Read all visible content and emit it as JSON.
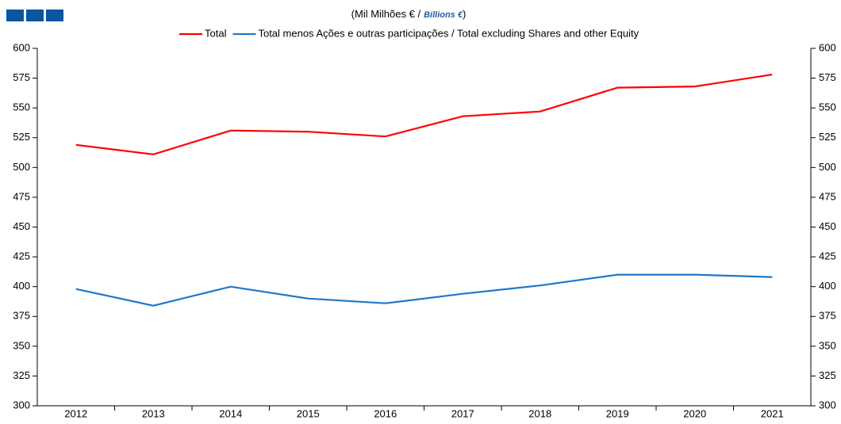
{
  "chart_data": {
    "type": "line",
    "title_parts": [
      "(Mil Milhões € /",
      "Billions €",
      ")"
    ],
    "categories": [
      "2012",
      "2013",
      "2014",
      "2015",
      "2016",
      "2017",
      "2018",
      "2019",
      "2020",
      "2021"
    ],
    "series": [
      {
        "name": "Total",
        "color": "#ff0000",
        "values": [
          519,
          511,
          531,
          530,
          526,
          543,
          547,
          567,
          568,
          578
        ]
      },
      {
        "name": "Total menos Ações e outras participações / Total excluding Shares and other Equity",
        "color": "#1f78c8",
        "values": [
          398,
          384,
          400,
          390,
          386,
          394,
          401,
          410,
          410,
          408
        ]
      }
    ],
    "ylim": [
      300,
      600
    ],
    "yticks": [
      300,
      325,
      350,
      375,
      400,
      425,
      450,
      475,
      500,
      525,
      550,
      575,
      600
    ],
    "y2lim": [
      300,
      600
    ],
    "y2ticks": [
      300,
      325,
      350,
      375,
      400,
      425,
      450,
      475,
      500,
      525,
      550,
      575,
      600
    ],
    "grid": false,
    "legend": "top"
  }
}
